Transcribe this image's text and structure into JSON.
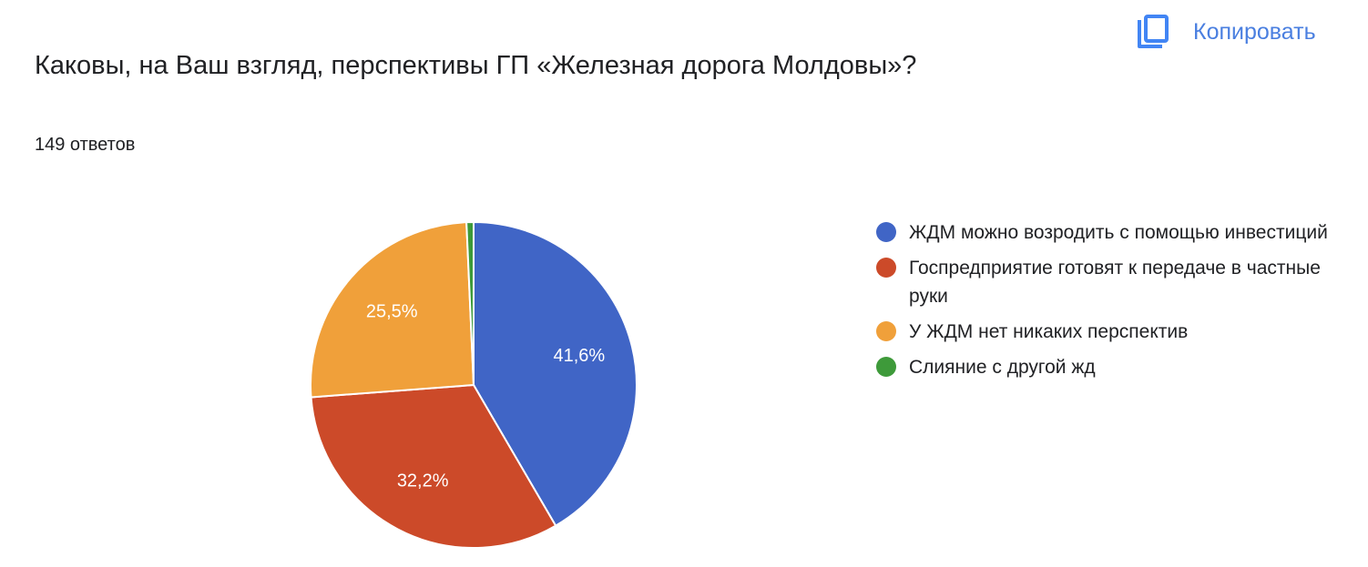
{
  "question": {
    "title": "Каковы, на Ваш взгляд, перспективы ГП «Железная дорога Молдовы»?",
    "responses": "149 ответов"
  },
  "toolbar": {
    "copy_label": "Копировать",
    "copy_icon": "copy-icon"
  },
  "colors": {
    "accent": "#4285f4",
    "slice_border": "#ffffff"
  },
  "chart_data": {
    "type": "pie",
    "title": "",
    "total_responses": 149,
    "start_angle_deg": 90,
    "direction": "clockwise",
    "legend_position": "right",
    "series": [
      {
        "name": "ЖДМ можно возродить с помощью инвестиций",
        "value": 41.6,
        "label": "41,6%",
        "color": "#4065c6"
      },
      {
        "name": "Госпредприятие готовят к передаче в частные руки",
        "value": 32.2,
        "label": "32,2%",
        "color": "#cc4a29"
      },
      {
        "name": "У ЖДМ нет никаких перспектив",
        "value": 25.5,
        "label": "25,5%",
        "color": "#f0a03a"
      },
      {
        "name": "Слияние с другой жд",
        "value": 0.7,
        "label": "",
        "color": "#3e9a3a"
      }
    ]
  }
}
